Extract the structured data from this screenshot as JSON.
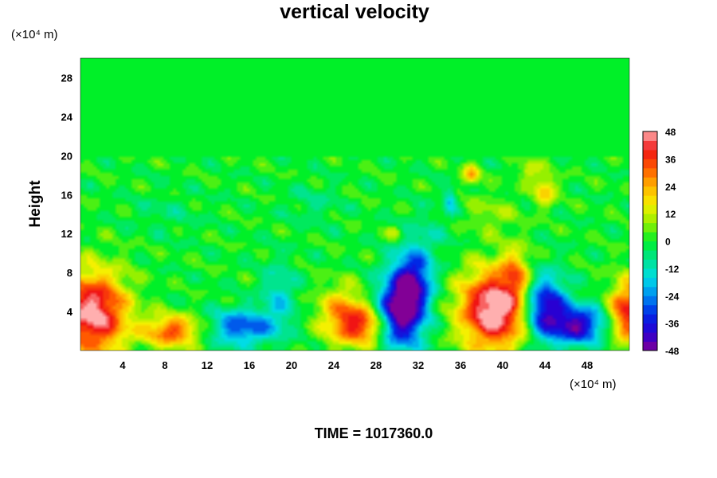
{
  "chart_data": {
    "type": "heatmap",
    "title": "vertical velocity",
    "ylabel": "Height",
    "x_unit": "(×10⁴ m)",
    "y_unit": "(×10⁴ m)",
    "xlim": [
      0,
      52
    ],
    "ylim": [
      0,
      30
    ],
    "x_ticks": [
      "4",
      "8",
      "12",
      "16",
      "20",
      "24",
      "28",
      "32",
      "36",
      "40",
      "44",
      "48"
    ],
    "y_ticks": [
      "4",
      "8",
      "12",
      "16",
      "20",
      "24",
      "28"
    ],
    "colorbar": {
      "min": -48,
      "max": 48,
      "ticks": [
        "48",
        "36",
        "24",
        "12",
        "0",
        "-12",
        "-24",
        "-36",
        "-48"
      ]
    },
    "features": [
      {
        "x": 1.2,
        "y": 3.8,
        "w": 50,
        "rx": 3.2,
        "ry": 4.2
      },
      {
        "x": 8.7,
        "y": 2.0,
        "w": 34,
        "rx": 2.6,
        "ry": 1.6
      },
      {
        "x": 15.3,
        "y": 2.4,
        "w": -30,
        "rx": 3.0,
        "ry": 1.8
      },
      {
        "x": 18.8,
        "y": 5.5,
        "w": -14,
        "rx": 1.6,
        "ry": 3.5
      },
      {
        "x": 24.8,
        "y": 3.6,
        "w": 28,
        "rx": 2.2,
        "ry": 2.8
      },
      {
        "x": 27.0,
        "y": 2.5,
        "w": 30,
        "rx": 2.0,
        "ry": 1.9
      },
      {
        "x": 30.4,
        "y": 4.0,
        "w": -52,
        "rx": 2.2,
        "ry": 3.6
      },
      {
        "x": 31.5,
        "y": 7.5,
        "w": -32,
        "rx": 1.8,
        "ry": 3.0
      },
      {
        "x": 39.2,
        "y": 4.2,
        "w": 54,
        "rx": 3.2,
        "ry": 4.0
      },
      {
        "x": 41.2,
        "y": 8.0,
        "w": 20,
        "rx": 1.3,
        "ry": 2.5
      },
      {
        "x": 44.0,
        "y": 4.4,
        "w": -44,
        "rx": 2.0,
        "ry": 3.2
      },
      {
        "x": 47.2,
        "y": 2.6,
        "w": -42,
        "rx": 2.4,
        "ry": 1.9
      },
      {
        "x": 51.8,
        "y": 4.0,
        "w": 40,
        "rx": 1.6,
        "ry": 3.2
      },
      {
        "x": 37.0,
        "y": 18.0,
        "w": 24,
        "rx": 0.8,
        "ry": 1.0
      },
      {
        "x": 44.0,
        "y": 16.5,
        "w": 22,
        "rx": 1.0,
        "ry": 1.6
      },
      {
        "x": 42.5,
        "y": 18.5,
        "w": 16,
        "rx": 0.9,
        "ry": 1.0
      },
      {
        "x": 35.0,
        "y": 15.5,
        "w": -18,
        "rx": 0.6,
        "ry": 1.2
      },
      {
        "x": 29.8,
        "y": 12.0,
        "w": 14,
        "rx": 0.7,
        "ry": 0.8
      },
      {
        "x": 22.0,
        "y": 15.0,
        "w": -6,
        "rx": 2.5,
        "ry": 2.0
      },
      {
        "x": 8.0,
        "y": 14.0,
        "w": -5,
        "rx": 3.0,
        "ry": 2.0
      },
      {
        "x": 33.0,
        "y": 12.0,
        "w": -6,
        "rx": 2.5,
        "ry": 2.5
      },
      {
        "x": 39.0,
        "y": 14.0,
        "w": 8,
        "rx": 2.5,
        "ry": 2.0
      }
    ]
  },
  "footer": {
    "time_label": "TIME = 1017360.0"
  }
}
